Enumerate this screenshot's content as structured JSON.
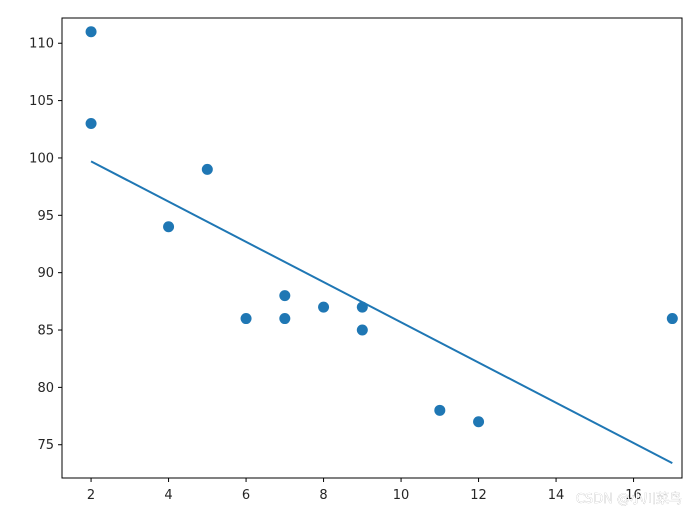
{
  "chart_data": {
    "type": "scatter",
    "title": "",
    "xlabel": "",
    "ylabel": "",
    "xlim": [
      1.25,
      17.25
    ],
    "ylim": [
      72.1,
      112.2
    ],
    "x_ticks": [
      2,
      4,
      6,
      8,
      10,
      12,
      14,
      16
    ],
    "y_ticks": [
      75,
      80,
      85,
      90,
      95,
      100,
      105,
      110
    ],
    "x_tick_labels": [
      "2",
      "4",
      "6",
      "8",
      "10",
      "12",
      "14",
      "16"
    ],
    "y_tick_labels": [
      "75",
      "80",
      "85",
      "90",
      "95",
      "100",
      "105",
      "110"
    ],
    "grid": false,
    "legend": "none",
    "series": [
      {
        "type": "scatter",
        "color": "#1f77b4",
        "points": [
          {
            "x": 2,
            "y": 111
          },
          {
            "x": 2,
            "y": 103
          },
          {
            "x": 4,
            "y": 94
          },
          {
            "x": 5,
            "y": 99
          },
          {
            "x": 6,
            "y": 86
          },
          {
            "x": 7,
            "y": 88
          },
          {
            "x": 7,
            "y": 86
          },
          {
            "x": 8,
            "y": 87
          },
          {
            "x": 9,
            "y": 87
          },
          {
            "x": 9,
            "y": 85
          },
          {
            "x": 11,
            "y": 78
          },
          {
            "x": 12,
            "y": 77
          },
          {
            "x": 17,
            "y": 86
          }
        ]
      },
      {
        "type": "line",
        "color": "#1f77b4",
        "points": [
          {
            "x": 2,
            "y": 99.7
          },
          {
            "x": 17,
            "y": 73.4
          }
        ]
      }
    ]
  },
  "watermark": {
    "text": "CSDN @小川菜鸟"
  },
  "colors": {
    "marker": "#1f77b4",
    "axes": "#000000",
    "text": "#262626"
  }
}
